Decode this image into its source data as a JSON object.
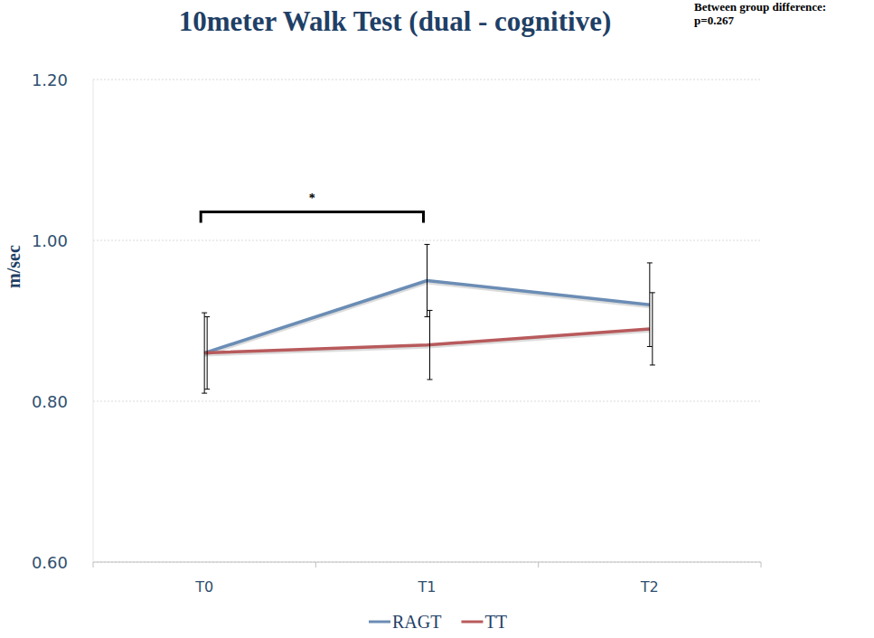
{
  "chart_data": {
    "type": "line",
    "title": "10meter Walk Test (dual - cognitive)",
    "y_label": "m/sec",
    "categories": [
      "T0",
      "T1",
      "T2"
    ],
    "series": [
      {
        "name": "RAGT",
        "color": "#6b8db5",
        "values": [
          0.86,
          0.95,
          0.92
        ],
        "errors": [
          0.05,
          0.045,
          0.052
        ]
      },
      {
        "name": "TT",
        "color": "#b85a5c",
        "values": [
          0.86,
          0.87,
          0.89
        ],
        "errors": [
          0.045,
          0.043,
          0.045
        ]
      }
    ],
    "ylim": [
      0.6,
      1.2
    ],
    "yticks": [
      {
        "value": 0.6,
        "label": "0.60"
      },
      {
        "value": 0.8,
        "label": "0.80"
      },
      {
        "value": 1.0,
        "label": "1.00"
      },
      {
        "value": 1.2,
        "label": "1.20"
      }
    ],
    "grid": true,
    "legend": "bottom",
    "annotations": [
      {
        "text": "Between group difference:"
      },
      {
        "text": "p=0.267"
      },
      {
        "text": "*",
        "between": [
          "T0",
          "T1"
        ]
      }
    ]
  }
}
